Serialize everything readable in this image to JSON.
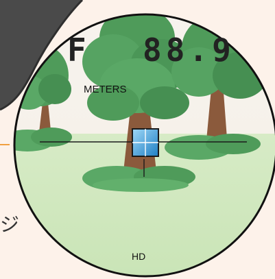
{
  "display": {
    "mode_letter": "F",
    "distance_value": "88.9",
    "unit_label": "METERS",
    "footer_label": "HD"
  },
  "side_text": {
    "glyph": "ジ"
  },
  "colors": {
    "page_background": "#fdf2ea",
    "grass": "#cfe7c0",
    "foliage": "#4f9b5a",
    "trunk": "#8b5a3c",
    "reticle": "#1a1a1a",
    "target_box": "#3aa3e0",
    "pointer_line": "#f0a040"
  }
}
